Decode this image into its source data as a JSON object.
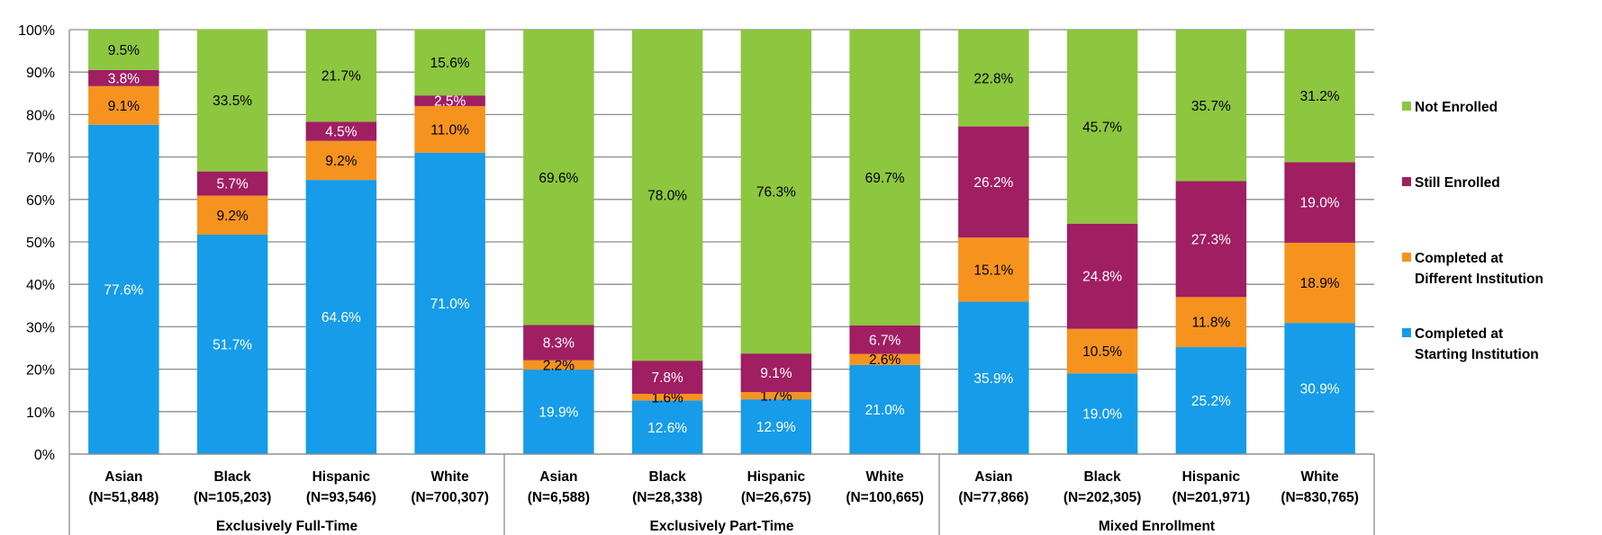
{
  "chart_data": {
    "type": "bar",
    "stacked": true,
    "percent_stacked": true,
    "title": "",
    "xlabel": "",
    "ylabel": "",
    "ylim": [
      0,
      100
    ],
    "yticks": [
      "0%",
      "10%",
      "20%",
      "30%",
      "40%",
      "50%",
      "60%",
      "70%",
      "80%",
      "90%",
      "100%"
    ],
    "grid": true,
    "legend_position": "right",
    "groups": [
      {
        "name": "Exclusively Full-Time",
        "categories": [
          {
            "race": "Asian",
            "n": "(N=51,848)"
          },
          {
            "race": "Black",
            "n": "(N=105,203)"
          },
          {
            "race": "Hispanic",
            "n": "(N=93,546)"
          },
          {
            "race": "White",
            "n": "(N=700,307)"
          }
        ]
      },
      {
        "name": "Exclusively Part-Time",
        "categories": [
          {
            "race": "Asian",
            "n": "(N=6,588)"
          },
          {
            "race": "Black",
            "n": "(N=28,338)"
          },
          {
            "race": "Hispanic",
            "n": "(N=26,675)"
          },
          {
            "race": "White",
            "n": "(N=100,665)"
          }
        ]
      },
      {
        "name": "Mixed Enrollment",
        "categories": [
          {
            "race": "Asian",
            "n": "(N=77,866)"
          },
          {
            "race": "Black",
            "n": "(N=202,305)"
          },
          {
            "race": "Hispanic",
            "n": "(N=201,971)"
          },
          {
            "race": "White",
            "n": "(N=830,765)"
          }
        ]
      }
    ],
    "series": [
      {
        "name": "Completed at Starting Institution",
        "color": "#169ce8",
        "label_color": "#ffffff",
        "values": [
          77.6,
          51.7,
          64.6,
          71.0,
          19.9,
          12.6,
          12.9,
          21.0,
          35.9,
          19.0,
          25.2,
          30.9
        ]
      },
      {
        "name": "Completed at Different Institution",
        "color": "#f6931e",
        "label_color": "#000000",
        "values": [
          9.1,
          9.2,
          9.2,
          11.0,
          2.2,
          1.6,
          1.7,
          2.6,
          15.1,
          10.5,
          11.8,
          18.9
        ]
      },
      {
        "name": "Still Enrolled",
        "color": "#a01e62",
        "label_color": "#ffffff",
        "values": [
          3.8,
          5.7,
          4.5,
          2.5,
          8.3,
          7.8,
          9.1,
          6.7,
          26.2,
          24.8,
          27.3,
          19.0
        ]
      },
      {
        "name": "Not Enrolled",
        "color": "#8dc63f",
        "label_color": "#000000",
        "values": [
          9.5,
          33.5,
          21.7,
          15.6,
          69.6,
          78.0,
          76.3,
          69.7,
          22.8,
          45.7,
          35.7,
          31.2
        ]
      }
    ],
    "legend": [
      {
        "lines": [
          "Not Enrolled"
        ],
        "color": "#8dc63f"
      },
      {
        "lines": [
          "Still Enrolled"
        ],
        "color": "#a01e62"
      },
      {
        "lines": [
          "Completed at",
          "Different Institution"
        ],
        "color": "#f6931e"
      },
      {
        "lines": [
          "Completed at",
          "Starting Institution"
        ],
        "color": "#169ce8"
      }
    ]
  }
}
